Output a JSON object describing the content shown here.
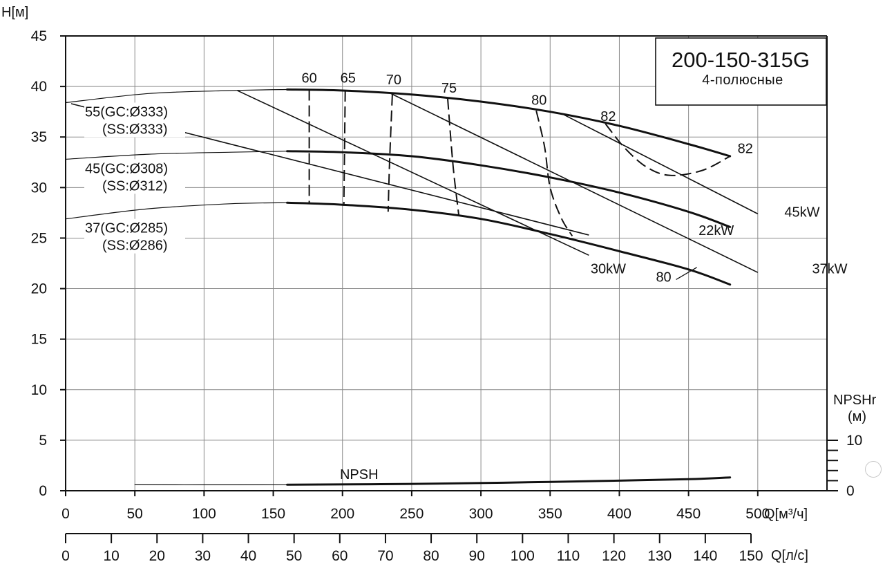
{
  "chart_data": {
    "type": "line",
    "model": "200-150-315G",
    "subtitle": "4-полюсные",
    "y_label": "H[м]",
    "x_label": "Q[м³/ч]",
    "x2_label": "Q[л/с]",
    "npsh_axis_label": [
      "NPSHr",
      "(м)"
    ],
    "xlim": [
      0,
      550
    ],
    "ylim": [
      0,
      45
    ],
    "x_ticks": [
      0,
      50,
      100,
      150,
      200,
      250,
      300,
      350,
      400,
      450,
      500
    ],
    "y_ticks": [
      0,
      5,
      10,
      15,
      20,
      25,
      30,
      35,
      40,
      45
    ],
    "x2_ticks": [
      0,
      10,
      20,
      30,
      40,
      50,
      60,
      70,
      80,
      90,
      100,
      110,
      120,
      130,
      140,
      150
    ],
    "npsh_ticks": [
      {
        "value": 0,
        "label": "0"
      },
      {
        "value": 10,
        "label": "10"
      }
    ],
    "head_curves": [
      {
        "name": "55(GC:Ø333)",
        "label_lines": [
          "55(GC:Ø333)",
          "(SS:Ø333)"
        ],
        "extension": [
          [
            0,
            38.4
          ],
          [
            60,
            39.3
          ],
          [
            120,
            39.6
          ],
          [
            160,
            39.7
          ]
        ],
        "operating": [
          [
            160,
            39.7
          ],
          [
            200,
            39.6
          ],
          [
            250,
            39.2
          ],
          [
            300,
            38.5
          ],
          [
            350,
            37.5
          ],
          [
            400,
            36.1
          ],
          [
            450,
            34.3
          ],
          [
            480,
            33.1
          ]
        ]
      },
      {
        "name": "45(GC:Ø308)",
        "label_lines": [
          "45(GC:Ø308)",
          "(SS:Ø312)"
        ],
        "extension": [
          [
            0,
            32.8
          ],
          [
            60,
            33.3
          ],
          [
            120,
            33.5
          ],
          [
            160,
            33.6
          ]
        ],
        "operating": [
          [
            160,
            33.6
          ],
          [
            200,
            33.5
          ],
          [
            250,
            33.1
          ],
          [
            300,
            32.2
          ],
          [
            350,
            31.0
          ],
          [
            400,
            29.5
          ],
          [
            450,
            27.6
          ],
          [
            480,
            26.1
          ]
        ]
      },
      {
        "name": "37(GC:Ø285)",
        "label_lines": [
          "37(GC:Ø285)",
          "(SS:Ø286)"
        ],
        "extension": [
          [
            0,
            26.9
          ],
          [
            60,
            27.9
          ],
          [
            120,
            28.4
          ],
          [
            160,
            28.5
          ]
        ],
        "operating": [
          [
            160,
            28.5
          ],
          [
            200,
            28.3
          ],
          [
            250,
            27.8
          ],
          [
            300,
            26.9
          ],
          [
            350,
            25.4
          ],
          [
            400,
            23.7
          ],
          [
            450,
            21.9
          ],
          [
            480,
            20.4
          ]
        ]
      }
    ],
    "power_lines": [
      {
        "label": "22kW",
        "from": [
          4,
          38.3
        ],
        "to": [
          378,
          25.3
        ],
        "label_at": [
          470,
          25.3
        ]
      },
      {
        "label": "30kW",
        "from": [
          124,
          39.6
        ],
        "to": [
          378,
          23.3
        ],
        "label_at": [
          392,
          21.5
        ]
      },
      {
        "label": "37kW",
        "from": [
          235,
          39.3
        ],
        "to": [
          500,
          21.6
        ],
        "label_at": [
          552,
          21.5
        ]
      },
      {
        "label": "45kW",
        "from": [
          360,
          37.2
        ],
        "to": [
          500,
          27.4
        ],
        "label_at": [
          532,
          27.1
        ]
      }
    ],
    "efficiency_curves": [
      {
        "label": "60",
        "points": [
          [
            176,
            39.7
          ],
          [
            176,
            28.4
          ]
        ],
        "label_at": [
          176,
          40.4
        ]
      },
      {
        "label": "65",
        "points": [
          [
            202,
            39.6
          ],
          [
            201,
            28.2
          ]
        ],
        "label_at": [
          204,
          40.4
        ]
      },
      {
        "label": "70",
        "points": [
          [
            236,
            39.2
          ],
          [
            234,
            32.5
          ],
          [
            233,
            27.6
          ]
        ],
        "label_at": [
          237,
          40.2
        ]
      },
      {
        "label": "75",
        "points": [
          [
            276,
            38.8
          ],
          [
            280,
            32.0
          ],
          [
            284,
            27.3
          ]
        ],
        "label_at": [
          277,
          39.4
        ]
      },
      {
        "label": "80",
        "points": [
          [
            340,
            37.6
          ],
          [
            346,
            34.0
          ],
          [
            350,
            30.0
          ],
          [
            358,
            27.0
          ],
          [
            366,
            25.2
          ]
        ],
        "label_at": [
          342,
          38.2
        ]
      },
      {
        "label": "82",
        "points": [
          [
            390,
            36.3
          ],
          [
            404,
            33.9
          ],
          [
            420,
            32.0
          ],
          [
            437,
            31.2
          ],
          [
            460,
            31.7
          ],
          [
            480,
            33.1
          ]
        ],
        "label_at": [
          392,
          36.6
        ]
      }
    ],
    "extra_labels": [
      {
        "text": "82",
        "x": 491,
        "y": 33.4
      },
      {
        "text": "80",
        "x": 432,
        "y": 20.7
      }
    ],
    "npsh_curve": {
      "label": "NPSH",
      "label_at": [
        212,
        2.3
      ],
      "extension": [
        [
          50,
          1.25
        ],
        [
          100,
          1.18
        ],
        [
          160,
          1.2
        ]
      ],
      "operating": [
        [
          160,
          1.2
        ],
        [
          250,
          1.35
        ],
        [
          350,
          1.75
        ],
        [
          450,
          2.3
        ],
        [
          480,
          2.65
        ]
      ]
    }
  }
}
